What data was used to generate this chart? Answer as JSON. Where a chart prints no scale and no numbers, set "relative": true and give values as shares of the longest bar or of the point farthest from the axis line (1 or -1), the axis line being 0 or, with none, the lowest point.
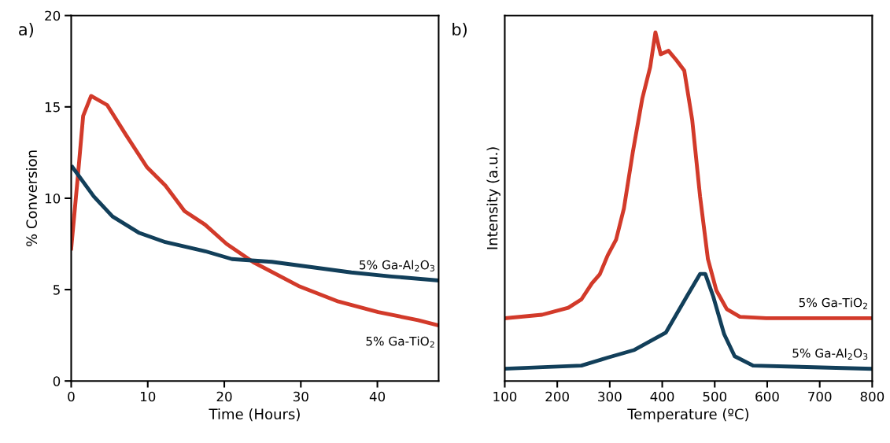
{
  "chart_data": [
    {
      "type": "line",
      "title": "a)",
      "xlabel": "Time (Hours)",
      "ylabel": "% Conversion",
      "xlim": [
        0,
        48
      ],
      "xticks": [
        0,
        10,
        20,
        30,
        40
      ],
      "ylim": [
        0,
        20
      ],
      "yticks": [
        0,
        5,
        10,
        15,
        20
      ],
      "grid": false,
      "legend": false,
      "series": [
        {
          "name": "5% Ga-TiO$_{2}$",
          "color": "#d23a2a",
          "x": [
            0,
            0.87,
            1.56,
            2.6,
            4.7,
            7.1,
            9.9,
            12.3,
            14.8,
            17.5,
            20.3,
            23.8,
            29.7,
            34.9,
            40.1,
            45.3,
            48
          ],
          "values": [
            7.25,
            11.2,
            14.5,
            15.6,
            15.1,
            13.5,
            11.7,
            10.7,
            9.3,
            8.55,
            7.5,
            6.5,
            5.2,
            4.35,
            3.77,
            3.33,
            3.04
          ]
        },
        {
          "name": "5% Ga-Al$_{2}$O$_{3}$",
          "color": "#123f5a",
          "x": [
            0.17,
            2.95,
            5.4,
            8.9,
            12.3,
            17.5,
            21,
            26.2,
            31.4,
            36.6,
            41.8,
            48
          ],
          "values": [
            11.7,
            10.1,
            9.0,
            8.1,
            7.6,
            7.1,
            6.67,
            6.52,
            6.23,
            5.94,
            5.72,
            5.5
          ]
        }
      ]
    },
    {
      "type": "line",
      "title": "b)",
      "xlabel": "Temperature (ºC)",
      "ylabel": "Intensity (a.u.)",
      "xlim": [
        100,
        800
      ],
      "xticks": [
        100,
        200,
        300,
        400,
        500,
        600,
        700,
        800
      ],
      "relative": true,
      "tick_labels": "x",
      "grid": false,
      "legend": false,
      "series": [
        {
          "name": "5% Ga-TiO$_{2}$",
          "color": "#d23a2a",
          "x": [
            100,
            171,
            221,
            246,
            266,
            281,
            296,
            312,
            327,
            344,
            362,
            377,
            387,
            397,
            412,
            427,
            442,
            457,
            472,
            487,
            503,
            523,
            548,
            598,
            799
          ],
          "values": [
            0.18,
            0.19,
            0.21,
            0.234,
            0.28,
            0.306,
            0.36,
            0.405,
            0.495,
            0.657,
            0.81,
            0.9,
            1.0,
            0.937,
            0.947,
            0.92,
            0.89,
            0.75,
            0.53,
            0.35,
            0.26,
            0.206,
            0.184,
            0.18,
            0.18
          ]
        },
        {
          "name": "5% Ga-Al$_{2}$O$_{3}$",
          "color": "#123f5a",
          "x": [
            100,
            246,
            296,
            347,
            407,
            447,
            472,
            482,
            497,
            518,
            538,
            573,
            799
          ],
          "values": [
            0.035,
            0.044,
            0.067,
            0.089,
            0.139,
            0.243,
            0.307,
            0.307,
            0.243,
            0.134,
            0.071,
            0.044,
            0.035
          ]
        }
      ]
    }
  ]
}
